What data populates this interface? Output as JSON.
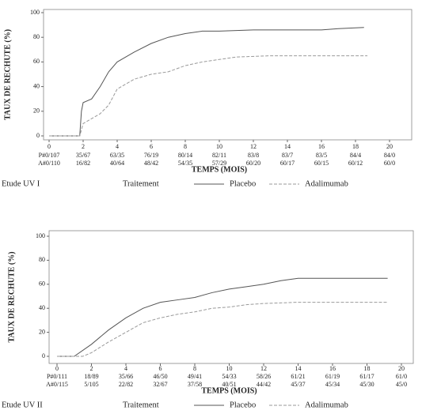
{
  "chart_data": [
    {
      "type": "line",
      "study": "Etude UV I",
      "legend_title": "Traitement",
      "ylabel": "TAUX DE RECHUTE (%)",
      "xlabel": "TEMPS (MOIS)",
      "xlim": [
        0,
        20
      ],
      "ylim": [
        0,
        100
      ],
      "xticks": [
        0,
        2,
        4,
        6,
        8,
        10,
        12,
        14,
        16,
        18,
        20
      ],
      "yticks": [
        0,
        20,
        40,
        60,
        80,
        100
      ],
      "series": [
        {
          "name": "Placebo",
          "color": "#555555",
          "dashed": false,
          "x": [
            0,
            1.8,
            1.9,
            2,
            2.5,
            3,
            3.5,
            4,
            5,
            6,
            7,
            8,
            9,
            10,
            12,
            14,
            16,
            17,
            18.5
          ],
          "values": [
            0,
            0,
            20,
            27,
            30,
            40,
            52,
            60,
            68,
            75,
            80,
            83,
            85,
            85,
            86,
            86,
            86,
            87,
            88
          ]
        },
        {
          "name": "Adalimumab",
          "color": "#999999",
          "dashed": true,
          "x": [
            0,
            1.8,
            2,
            3,
            3.5,
            4,
            5,
            6,
            7,
            8,
            9,
            10,
            11,
            13,
            16,
            18.7
          ],
          "values": [
            0,
            0,
            10,
            18,
            25,
            38,
            46,
            50,
            52,
            57,
            60,
            62,
            64,
            65,
            65,
            65
          ]
        }
      ],
      "at_risk": [
        [
          "P#0/107",
          "35/67",
          "63/35",
          "76/19",
          "80/14",
          "82/11",
          "83/8",
          "83/7",
          "83/5",
          "84/4",
          "84/0"
        ],
        [
          "A#0/110",
          "16/82",
          "40/64",
          "48/42",
          "54/35",
          "57/29",
          "60/20",
          "60/17",
          "60/15",
          "60/12",
          "60/0"
        ]
      ]
    },
    {
      "type": "line",
      "study": "Etude UV II",
      "legend_title": "Traitement",
      "ylabel": "TAUX DE RECHUTE (%)",
      "xlabel": "TEMPS (MOIS)",
      "xlim": [
        0,
        20
      ],
      "ylim": [
        0,
        100
      ],
      "xticks": [
        0,
        2,
        4,
        6,
        8,
        10,
        12,
        14,
        16,
        18,
        20
      ],
      "yticks": [
        0,
        20,
        40,
        60,
        80,
        100
      ],
      "series": [
        {
          "name": "Placebo",
          "color": "#555555",
          "dashed": false,
          "x": [
            0,
            1,
            2,
            3,
            4,
            5,
            6,
            7,
            8,
            9,
            10,
            11,
            12,
            13,
            14,
            19.2
          ],
          "values": [
            0,
            0,
            10,
            22,
            32,
            40,
            45,
            47,
            49,
            53,
            56,
            58,
            60,
            63,
            65,
            65
          ]
        },
        {
          "name": "Adalimumab",
          "color": "#999999",
          "dashed": true,
          "x": [
            0,
            1.5,
            2,
            3,
            4,
            5,
            6,
            7,
            8,
            9,
            10,
            11,
            12,
            14,
            16,
            19.2
          ],
          "values": [
            0,
            0,
            3,
            12,
            20,
            28,
            32,
            35,
            37,
            40,
            41,
            43,
            44,
            45,
            45,
            45
          ]
        }
      ],
      "at_risk": [
        [
          "P#0/111",
          "18/89",
          "35/66",
          "46/50",
          "49/41",
          "54/33",
          "58/26",
          "61/21",
          "61/19",
          "61/17",
          "61/0"
        ],
        [
          "A#0/115",
          "5/105",
          "22/82",
          "32/67",
          "37/58",
          "40/51",
          "44/42",
          "45/37",
          "45/34",
          "45/30",
          "45/0"
        ]
      ]
    }
  ]
}
